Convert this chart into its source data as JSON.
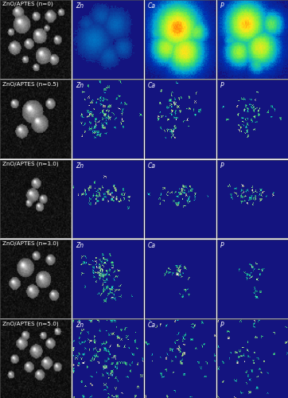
{
  "rows": [
    "ZnO/APTES (n=0)",
    "ZnO/APTES (n=0.5)",
    "ZnO/APTES (n=1.0)",
    "ZnO/APTES (n=3.0)",
    "ZnO/APTES (n=5.0)"
  ],
  "col_labels": [
    "Zn",
    "Ca",
    "P"
  ],
  "bg_blue_r": 0.08,
  "bg_blue_g": 0.08,
  "bg_blue_b": 0.5,
  "label_fontsize": 5.5,
  "row_label_fontsize": 5.2,
  "fig_width": 3.62,
  "fig_height": 5.0,
  "dpi": 100,
  "hspace": 0.015,
  "wspace": 0.015
}
